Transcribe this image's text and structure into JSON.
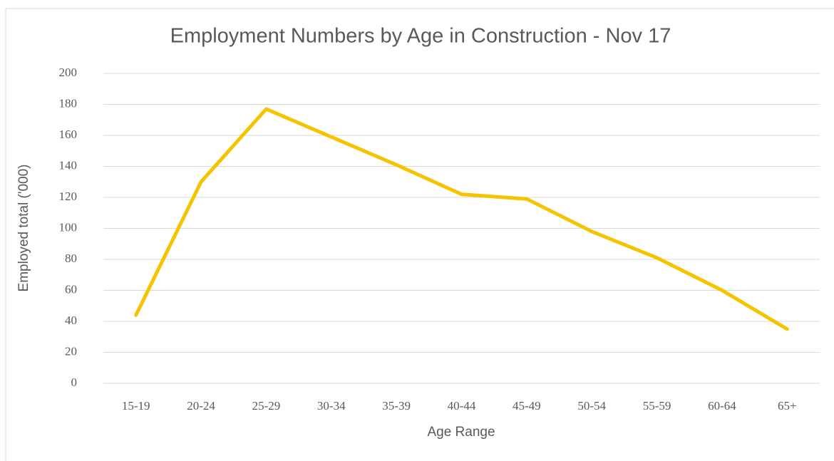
{
  "chart_data": {
    "type": "line",
    "title": "Employment Numbers by Age in Construction - Nov 17",
    "x_label": "Age Range",
    "y_label": "Employed total ('000)",
    "categories": [
      "15-19",
      "20-24",
      "25-29",
      "30-34",
      "35-39",
      "40-44",
      "45-49",
      "50-54",
      "55-59",
      "60-64",
      "65+"
    ],
    "values": [
      44,
      130,
      177,
      159,
      141,
      122,
      119,
      98,
      81,
      60,
      35
    ],
    "color": "#f5c400",
    "ylim": [
      0,
      200
    ],
    "yticks": [
      0,
      20,
      40,
      60,
      80,
      100,
      120,
      140,
      160,
      180,
      200
    ],
    "grid": true
  }
}
